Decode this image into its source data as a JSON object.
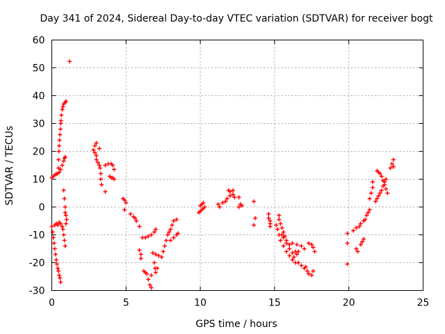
{
  "chart_data": {
    "type": "scatter",
    "title": "Day 341 of 2024, Sidereal Day-to-day VTEC variation (SDTVAR) for receiver bogt",
    "xlabel": "GPS time / hours",
    "ylabel": "SDTVAR / TECUs",
    "xlim": [
      0,
      25
    ],
    "ylim": [
      -30,
      60
    ],
    "xticks": [
      0,
      5,
      10,
      15,
      20,
      25
    ],
    "yticks": [
      -30,
      -20,
      -10,
      0,
      10,
      20,
      30,
      40,
      50,
      60
    ],
    "grid": true,
    "marker": "+",
    "color": "#ff0000",
    "series": [
      {
        "name": "SDTVAR",
        "points": [
          [
            0.0,
            10.5
          ],
          [
            0.1,
            11.0
          ],
          [
            0.2,
            11.5
          ],
          [
            0.3,
            11.8
          ],
          [
            0.4,
            12.0
          ],
          [
            0.5,
            12.5
          ],
          [
            0.6,
            13.5
          ],
          [
            0.7,
            15.0
          ],
          [
            0.8,
            16.5
          ],
          [
            0.85,
            17.5
          ],
          [
            0.9,
            18.0
          ],
          [
            0.45,
            14.0
          ],
          [
            0.45,
            17.0
          ],
          [
            0.48,
            20.0
          ],
          [
            0.5,
            22.0
          ],
          [
            0.52,
            24.0
          ],
          [
            0.55,
            26.0
          ],
          [
            0.58,
            28.0
          ],
          [
            0.6,
            30.0
          ],
          [
            0.62,
            31.0
          ],
          [
            0.65,
            33.0
          ],
          [
            0.7,
            35.0
          ],
          [
            0.75,
            36.0
          ],
          [
            0.8,
            37.0
          ],
          [
            0.9,
            37.5
          ],
          [
            0.95,
            38.0
          ],
          [
            1.2,
            52.3
          ],
          [
            0.0,
            -7.0
          ],
          [
            0.05,
            -9.0
          ],
          [
            0.1,
            -11.0
          ],
          [
            0.15,
            -13.0
          ],
          [
            0.2,
            -15.0
          ],
          [
            0.25,
            -17.0
          ],
          [
            0.3,
            -19.0
          ],
          [
            0.35,
            -20.5
          ],
          [
            0.4,
            -22.0
          ],
          [
            0.45,
            -23.0
          ],
          [
            0.5,
            -24.5
          ],
          [
            0.55,
            -25.5
          ],
          [
            0.6,
            -27.0
          ],
          [
            0.2,
            -6.5
          ],
          [
            0.3,
            -6.0
          ],
          [
            0.4,
            -6.5
          ],
          [
            0.5,
            -5.5
          ],
          [
            0.6,
            -6.0
          ],
          [
            0.7,
            -7.0
          ],
          [
            0.75,
            -8.0
          ],
          [
            0.8,
            -10.0
          ],
          [
            0.85,
            -12.0
          ],
          [
            0.9,
            -14.0
          ],
          [
            0.95,
            -6.0
          ],
          [
            1.0,
            -4.5
          ],
          [
            0.8,
            6.0
          ],
          [
            0.85,
            3.0
          ],
          [
            0.9,
            0.0
          ],
          [
            0.9,
            -2.0
          ],
          [
            0.95,
            -3.0
          ],
          [
            2.8,
            20.5
          ],
          [
            2.9,
            19.5
          ],
          [
            3.0,
            18.5
          ],
          [
            3.0,
            17.0
          ],
          [
            3.1,
            16.0
          ],
          [
            3.2,
            15.0
          ],
          [
            3.25,
            14.0
          ],
          [
            3.3,
            12.0
          ],
          [
            3.3,
            10.0
          ],
          [
            3.35,
            8.0
          ],
          [
            3.2,
            21.0
          ],
          [
            3.0,
            23.0
          ],
          [
            2.9,
            22.0
          ],
          [
            3.6,
            5.5
          ],
          [
            3.6,
            15.0
          ],
          [
            3.8,
            15.5
          ],
          [
            4.0,
            15.5
          ],
          [
            4.1,
            15.0
          ],
          [
            4.2,
            13.5
          ],
          [
            3.9,
            11.0
          ],
          [
            4.0,
            10.5
          ],
          [
            4.1,
            10.5
          ],
          [
            4.2,
            10.0
          ],
          [
            4.8,
            3.0
          ],
          [
            4.9,
            2.5
          ],
          [
            5.0,
            1.5
          ],
          [
            4.9,
            -1.0
          ],
          [
            5.3,
            -2.5
          ],
          [
            5.5,
            -3.5
          ],
          [
            5.6,
            -4.0
          ],
          [
            5.7,
            -5.0
          ],
          [
            5.9,
            -7.0
          ],
          [
            5.9,
            -15.5
          ],
          [
            6.0,
            -17.0
          ],
          [
            6.0,
            -18.5
          ],
          [
            6.1,
            -11.0
          ],
          [
            6.3,
            -11.0
          ],
          [
            6.5,
            -10.5
          ],
          [
            6.7,
            -10.0
          ],
          [
            6.9,
            -9.0
          ],
          [
            7.0,
            -8.0
          ],
          [
            6.2,
            -23.0
          ],
          [
            6.3,
            -23.5
          ],
          [
            6.4,
            -24.0
          ],
          [
            6.5,
            -26.0
          ],
          [
            6.6,
            -28.0
          ],
          [
            6.7,
            -29.0
          ],
          [
            6.7,
            -24.5
          ],
          [
            6.8,
            -16.5
          ],
          [
            7.0,
            -17.0
          ],
          [
            7.2,
            -17.5
          ],
          [
            7.4,
            -18.0
          ],
          [
            7.5,
            -16.0
          ],
          [
            7.6,
            -14.0
          ],
          [
            7.7,
            -12.0
          ],
          [
            7.8,
            -10.0
          ],
          [
            7.9,
            -9.0
          ],
          [
            8.0,
            -8.0
          ],
          [
            8.1,
            -6.5
          ],
          [
            8.2,
            -5.0
          ],
          [
            8.4,
            -4.5
          ],
          [
            6.9,
            -20.0
          ],
          [
            6.95,
            -22.0
          ],
          [
            7.0,
            -23.5
          ],
          [
            7.1,
            -22.0
          ],
          [
            8.0,
            -12.0
          ],
          [
            8.2,
            -11.0
          ],
          [
            8.4,
            -10.0
          ],
          [
            8.5,
            -9.5
          ],
          [
            9.9,
            -2.0
          ],
          [
            10.0,
            -1.5
          ],
          [
            10.1,
            -1.0
          ],
          [
            10.2,
            -0.5
          ],
          [
            10.3,
            0.0
          ],
          [
            10.0,
            0.5
          ],
          [
            10.1,
            1.0
          ],
          [
            10.2,
            1.5
          ],
          [
            11.2,
            1.0
          ],
          [
            11.3,
            0.0
          ],
          [
            11.5,
            1.5
          ],
          [
            11.7,
            2.0
          ],
          [
            11.8,
            3.0
          ],
          [
            12.0,
            4.0
          ],
          [
            12.2,
            4.5
          ],
          [
            12.3,
            3.5
          ],
          [
            11.9,
            6.0
          ],
          [
            12.0,
            5.5
          ],
          [
            12.2,
            6.0
          ],
          [
            12.6,
            3.5
          ],
          [
            12.7,
            1.0
          ],
          [
            12.8,
            0.5
          ],
          [
            12.6,
            0.0
          ],
          [
            13.6,
            2.0
          ],
          [
            13.7,
            -4.0
          ],
          [
            13.6,
            -6.5
          ],
          [
            14.6,
            -2.5
          ],
          [
            14.6,
            -4.0
          ],
          [
            14.7,
            -5.0
          ],
          [
            14.7,
            -6.0
          ],
          [
            14.7,
            -7.0
          ],
          [
            15.3,
            -3.0
          ],
          [
            15.3,
            -4.5
          ],
          [
            15.4,
            -6.0
          ],
          [
            15.5,
            -7.5
          ],
          [
            15.6,
            -9.0
          ],
          [
            15.7,
            -10.5
          ],
          [
            15.8,
            -12.0
          ],
          [
            15.1,
            -6.5
          ],
          [
            15.2,
            -8.0
          ],
          [
            15.3,
            -10.0
          ],
          [
            15.4,
            -12.0
          ],
          [
            15.6,
            -14.0
          ],
          [
            15.8,
            -16.0
          ],
          [
            16.0,
            -17.5
          ],
          [
            16.2,
            -19.0
          ],
          [
            16.4,
            -20.0
          ],
          [
            15.5,
            -10.0
          ],
          [
            15.6,
            -11.0
          ],
          [
            15.8,
            -13.0
          ],
          [
            16.0,
            -15.0
          ],
          [
            16.2,
            -16.5
          ],
          [
            16.3,
            -18.0
          ],
          [
            16.0,
            -13.5
          ],
          [
            16.2,
            -13.0
          ],
          [
            16.5,
            -13.5
          ],
          [
            16.8,
            -14.0
          ],
          [
            17.0,
            -15.0
          ],
          [
            16.6,
            -20.0
          ],
          [
            16.8,
            -21.0
          ],
          [
            17.0,
            -22.0
          ],
          [
            17.1,
            -21.5
          ],
          [
            17.2,
            -23.0
          ],
          [
            17.3,
            -24.0
          ],
          [
            17.5,
            -24.5
          ],
          [
            17.6,
            -23.0
          ],
          [
            17.3,
            -13.0
          ],
          [
            17.5,
            -13.5
          ],
          [
            17.6,
            -14.5
          ],
          [
            17.7,
            -16.0
          ],
          [
            16.4,
            -16.0
          ],
          [
            16.5,
            -17.0
          ],
          [
            16.6,
            -16.0
          ],
          [
            19.9,
            -9.5
          ],
          [
            19.9,
            -13.0
          ],
          [
            19.9,
            -20.5
          ],
          [
            20.3,
            -8.5
          ],
          [
            20.5,
            -7.5
          ],
          [
            20.7,
            -7.0
          ],
          [
            20.8,
            -6.0
          ],
          [
            21.0,
            -5.0
          ],
          [
            21.1,
            -4.5
          ],
          [
            20.5,
            -15.0
          ],
          [
            20.6,
            -16.0
          ],
          [
            20.8,
            -13.5
          ],
          [
            20.9,
            -12.5
          ],
          [
            21.0,
            -11.5
          ],
          [
            21.2,
            -3.0
          ],
          [
            21.3,
            -2.0
          ],
          [
            21.4,
            -1.0
          ],
          [
            21.4,
            3.0
          ],
          [
            21.5,
            5.0
          ],
          [
            21.6,
            7.0
          ],
          [
            21.6,
            9.0
          ],
          [
            21.8,
            2.0
          ],
          [
            21.9,
            3.0
          ],
          [
            22.0,
            4.0
          ],
          [
            22.1,
            5.0
          ],
          [
            22.2,
            6.0
          ],
          [
            22.3,
            7.5
          ],
          [
            22.4,
            9.0
          ],
          [
            22.5,
            10.0
          ],
          [
            21.9,
            13.0
          ],
          [
            22.0,
            12.5
          ],
          [
            22.1,
            12.0
          ],
          [
            22.2,
            11.0
          ],
          [
            22.3,
            9.5
          ],
          [
            22.4,
            8.0
          ],
          [
            22.5,
            6.5
          ],
          [
            22.6,
            5.0
          ],
          [
            22.8,
            14.0
          ],
          [
            22.9,
            15.5
          ],
          [
            23.0,
            17.0
          ],
          [
            23.0,
            14.5
          ]
        ]
      }
    ]
  }
}
